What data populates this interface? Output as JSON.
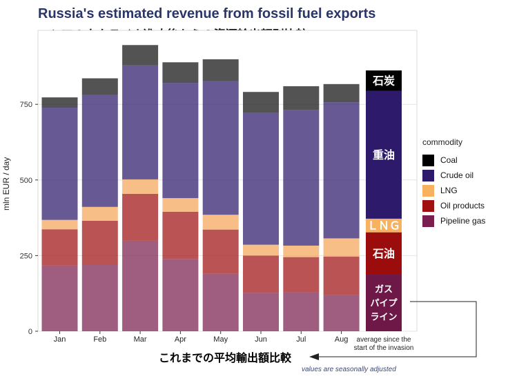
{
  "chart_data": {
    "type": "bar",
    "stacked": true,
    "title": "Russia's estimated revenue from fossil fuel exports",
    "subtitle": "ロシアのウクライナ進攻後からの資源輸出額別比較",
    "xlabel": "",
    "ylabel": "mln EUR / day",
    "ylim": [
      0,
      1000
    ],
    "yticks": [
      0,
      250,
      500,
      750
    ],
    "categories": [
      "Jan",
      "Feb",
      "Mar",
      "Apr",
      "May",
      "Jun",
      "Jul",
      "Aug"
    ],
    "series": [
      {
        "name": "Pipeline gas",
        "color": "#7a1e4f",
        "values": [
          217,
          219,
          299,
          239,
          190,
          127,
          128,
          120
        ]
      },
      {
        "name": "Oil products",
        "color": "#a01010",
        "values": [
          120,
          146,
          155,
          156,
          146,
          123,
          117,
          127
        ]
      },
      {
        "name": "LNG",
        "color": "#f5a55a",
        "values": [
          31,
          46,
          48,
          45,
          49,
          36,
          38,
          60
        ]
      },
      {
        "name": "Crude oil",
        "color": "#2d1a6b",
        "values": [
          371,
          370,
          377,
          381,
          443,
          437,
          449,
          450
        ]
      },
      {
        "name": "Coal",
        "color": "#111111",
        "values": [
          34,
          55,
          67,
          68,
          71,
          68,
          78,
          60
        ]
      }
    ],
    "average_bar": {
      "label": "average since the start of the invasion",
      "label_line1": "average since the",
      "label_line2": "start of the invasion",
      "values": {
        "Pipeline gas": 187,
        "Oil products": 140,
        "LNG": 45,
        "Crude oil": 423,
        "Coal": 67
      },
      "segment_labels": {
        "Coal": "石炭",
        "Crude oil": "重油",
        "LNG": "ＬＮＧ",
        "Oil products": "石油",
        "Pipeline gas": [
          "ガス",
          "パイプ",
          "ライン"
        ]
      }
    },
    "legend": {
      "title": "commodity",
      "position": "right",
      "entries": [
        {
          "name": "Coal",
          "color": "#000000"
        },
        {
          "name": "Crude oil",
          "color": "#2d1a6b"
        },
        {
          "name": "LNG",
          "color": "#f7b15f"
        },
        {
          "name": "Oil products",
          "color": "#a01010"
        },
        {
          "name": "Pipeline gas",
          "color": "#7a1e4f"
        }
      ]
    },
    "grid": true,
    "annotation": "これまでの平均輸出額比較",
    "footnote": "values are seasonally adjusted"
  }
}
